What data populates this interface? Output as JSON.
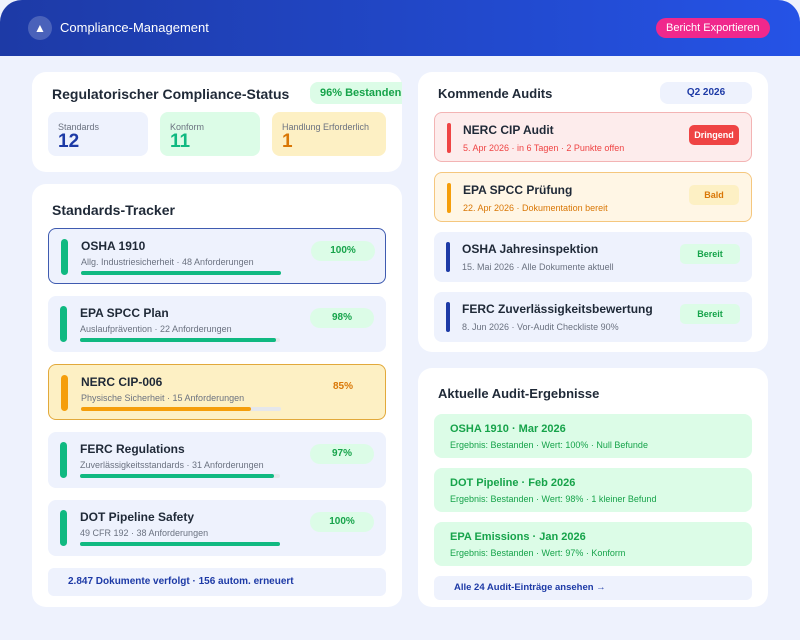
{
  "header": {
    "title": "Compliance-Management",
    "export_label": "Bericht Exportieren",
    "logo_icon": "tree-icon"
  },
  "status": {
    "title": "Regulatorischer Compliance-Status",
    "badge": "96% Bestanden",
    "stats": [
      {
        "label": "Standards",
        "value": "12"
      },
      {
        "label": "Konform",
        "value": "11"
      },
      {
        "label": "Handlung Erforderlich",
        "value": "1"
      }
    ]
  },
  "tracker": {
    "title": "Standards-Tracker",
    "items": [
      {
        "name": "OSHA 1910",
        "sub": "Allg. Industriesicherheit · 48 Anforderungen",
        "pct": "100%",
        "progress": 100,
        "status": "ok"
      },
      {
        "name": "EPA SPCC Plan",
        "sub": "Auslaufprävention · 22 Anforderungen",
        "pct": "98%",
        "progress": 98,
        "status": "ok"
      },
      {
        "name": "NERC CIP-006",
        "sub": "Physische Sicherheit · 15 Anforderungen",
        "pct": "85%",
        "progress": 85,
        "status": "warn"
      },
      {
        "name": "FERC Regulations",
        "sub": "Zuverlässigkeitsstandards · 31 Anforderungen",
        "pct": "97%",
        "progress": 97,
        "status": "ok"
      },
      {
        "name": "DOT Pipeline Safety",
        "sub": "49 CFR 192 · 38 Anforderungen",
        "pct": "100%",
        "progress": 100,
        "status": "ok"
      }
    ],
    "footer": "2.847 Dokumente verfolgt · 156 autom. erneuert"
  },
  "audits": {
    "title": "Kommende Audits",
    "period": "Q2 2026",
    "items": [
      {
        "name": "NERC CIP Audit",
        "sub": "5. Apr 2026 · in 6 Tagen · 2 Punkte offen",
        "badge": "Dringend"
      },
      {
        "name": "EPA SPCC Prüfung",
        "sub": "22. Apr 2026 · Dokumentation bereit",
        "badge": "Bald"
      },
      {
        "name": "OSHA Jahresinspektion",
        "sub": "15. Mai 2026 · Alle Dokumente aktuell",
        "badge": "Bereit"
      },
      {
        "name": "FERC Zuverlässigkeitsbewertung",
        "sub": "8. Jun 2026 · Vor-Audit Checkliste 90%",
        "badge": "Bereit"
      }
    ]
  },
  "results": {
    "title": "Aktuelle Audit-Ergebnisse",
    "items": [
      {
        "name": "OSHA 1910 · Mar 2026",
        "sub": "Ergebnis: Bestanden · Wert: 100% · Null Befunde"
      },
      {
        "name": "DOT Pipeline · Feb 2026",
        "sub": "Ergebnis: Bestanden · Wert: 98% · 1 kleiner Befund"
      },
      {
        "name": "EPA Emissions · Jan 2026",
        "sub": "Ergebnis: Bestanden · Wert: 97% · Konform"
      }
    ],
    "link": "Alle 24 Audit-Einträge ansehen →"
  },
  "colors": {
    "primary": "#1d3aa6",
    "accent": "#f0288c",
    "success": "#10b981",
    "warning": "#f59e0b",
    "danger": "#ef4444"
  }
}
